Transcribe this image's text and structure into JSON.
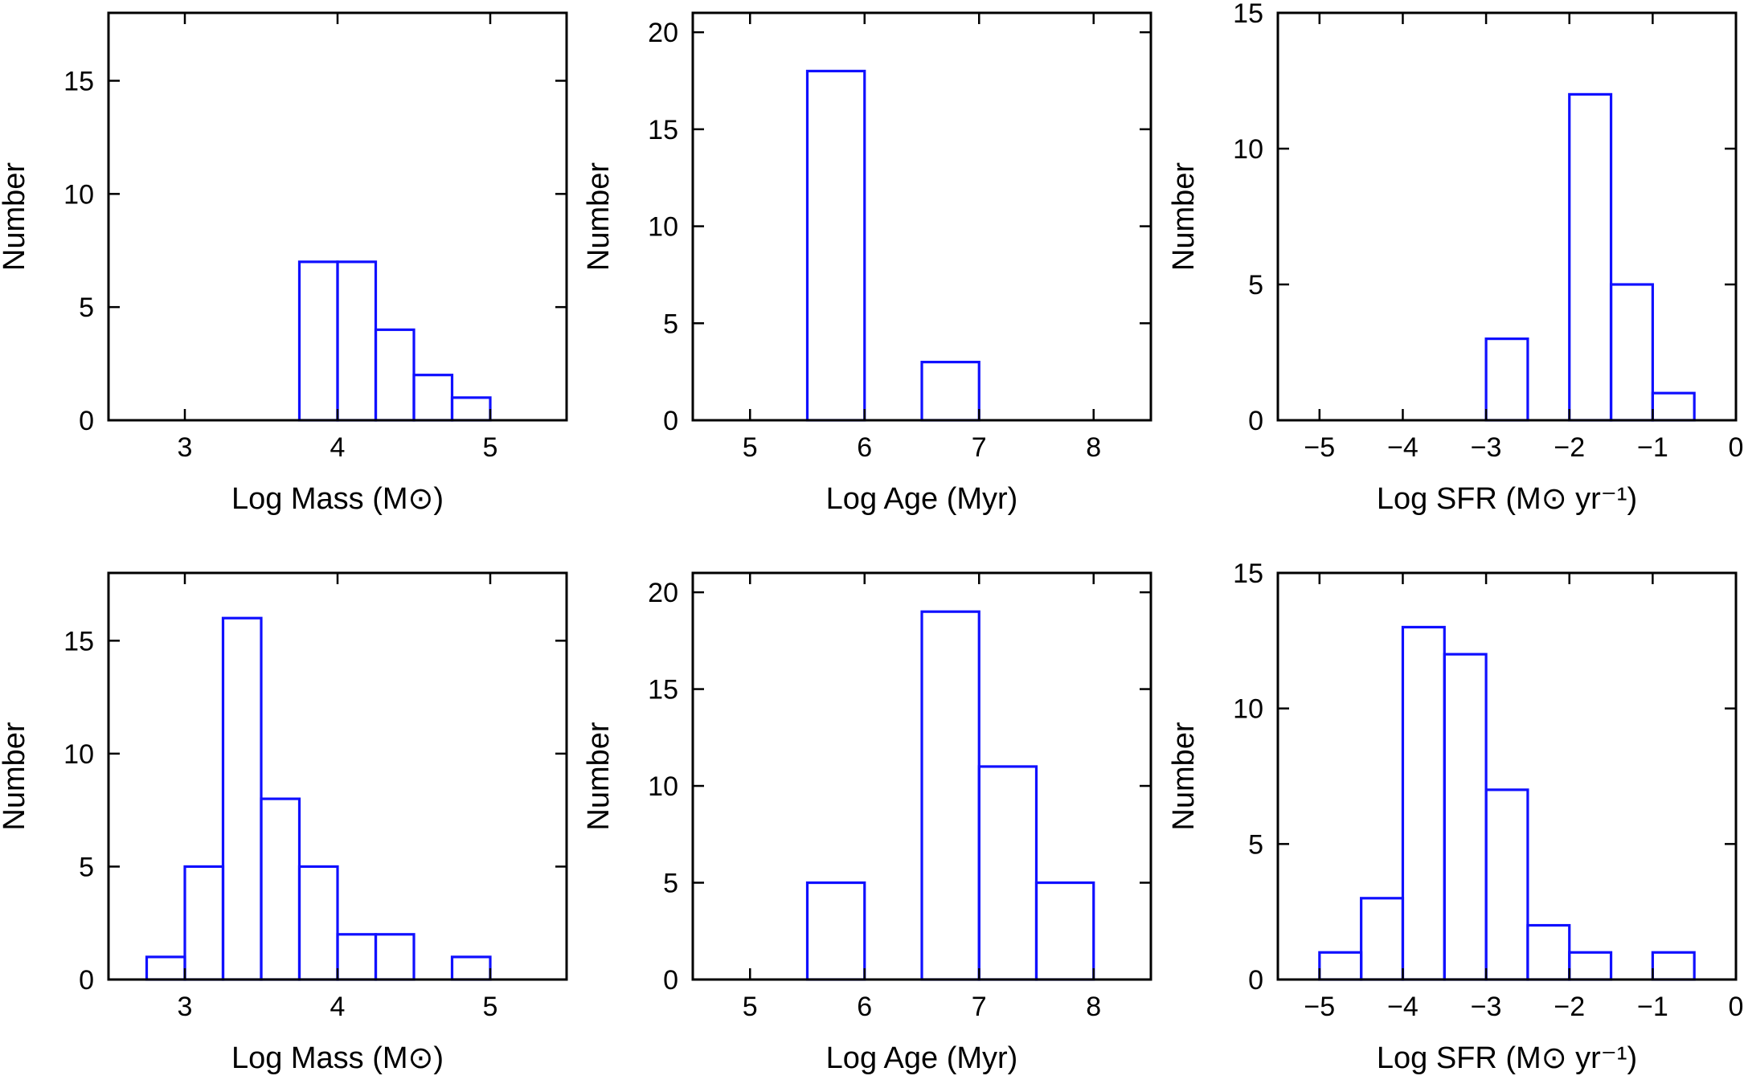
{
  "style": {
    "bar_color": "#1010ff",
    "axis_color": "#000000"
  },
  "chart_data": [
    {
      "type": "bar",
      "histogram": true,
      "panel": "top-left",
      "xlabel": "Log Mass (M⊙)",
      "ylabel": "Number",
      "xlim": [
        2.5,
        5.5
      ],
      "ylim": [
        0,
        18
      ],
      "xticks": [
        3,
        4,
        5
      ],
      "xtick_labels": [
        "3",
        "4",
        "5"
      ],
      "yticks": [
        0,
        5,
        10,
        15
      ],
      "ytick_labels": [
        "0",
        "5",
        "10",
        "15"
      ],
      "bin_width": 0.25,
      "bins": [
        [
          3.75,
          7
        ],
        [
          4.0,
          7
        ],
        [
          4.25,
          4
        ],
        [
          4.5,
          2
        ],
        [
          4.75,
          1
        ]
      ]
    },
    {
      "type": "bar",
      "histogram": true,
      "panel": "top-middle",
      "xlabel": "Log Age (Myr)",
      "ylabel": "Number",
      "xlim": [
        4.5,
        8.5
      ],
      "ylim": [
        0,
        21
      ],
      "xticks": [
        5,
        6,
        7,
        8
      ],
      "xtick_labels": [
        "5",
        "6",
        "7",
        "8"
      ],
      "yticks": [
        0,
        5,
        10,
        15,
        20
      ],
      "ytick_labels": [
        "0",
        "5",
        "10",
        "15",
        "20"
      ],
      "bin_width": 0.5,
      "bins": [
        [
          5.5,
          18
        ],
        [
          6.0,
          0
        ],
        [
          6.5,
          3
        ]
      ]
    },
    {
      "type": "bar",
      "histogram": true,
      "panel": "top-right",
      "xlabel": "Log SFR (M⊙ yr⁻¹)",
      "ylabel": "Number",
      "xlim": [
        -5.5,
        0
      ],
      "ylim": [
        0,
        15
      ],
      "xticks": [
        -5,
        -4,
        -3,
        -2,
        -1,
        0
      ],
      "xtick_labels": [
        "−5",
        "−4",
        "−3",
        "−2",
        "−1",
        "0"
      ],
      "yticks": [
        0,
        5,
        10,
        15
      ],
      "ytick_labels": [
        "0",
        "5",
        "10",
        "15"
      ],
      "bin_width": 0.5,
      "bins": [
        [
          -3.0,
          3
        ],
        [
          -2.5,
          0
        ],
        [
          -2.0,
          12
        ],
        [
          -1.5,
          5
        ],
        [
          -1.0,
          1
        ]
      ]
    },
    {
      "type": "bar",
      "histogram": true,
      "panel": "bottom-left",
      "xlabel": "Log Mass (M⊙)",
      "ylabel": "Number",
      "xlim": [
        2.5,
        5.5
      ],
      "ylim": [
        0,
        18
      ],
      "xticks": [
        3,
        4,
        5
      ],
      "xtick_labels": [
        "3",
        "4",
        "5"
      ],
      "yticks": [
        0,
        5,
        10,
        15
      ],
      "ytick_labels": [
        "0",
        "5",
        "10",
        "15"
      ],
      "bin_width": 0.25,
      "bins": [
        [
          2.75,
          1
        ],
        [
          3.0,
          5
        ],
        [
          3.25,
          16
        ],
        [
          3.5,
          8
        ],
        [
          3.75,
          5
        ],
        [
          4.0,
          2
        ],
        [
          4.25,
          2
        ],
        [
          4.5,
          0
        ],
        [
          4.75,
          1
        ]
      ]
    },
    {
      "type": "bar",
      "histogram": true,
      "panel": "bottom-middle",
      "xlabel": "Log Age (Myr)",
      "ylabel": "Number",
      "xlim": [
        4.5,
        8.5
      ],
      "ylim": [
        0,
        21
      ],
      "xticks": [
        5,
        6,
        7,
        8
      ],
      "xtick_labels": [
        "5",
        "6",
        "7",
        "8"
      ],
      "yticks": [
        0,
        5,
        10,
        15,
        20
      ],
      "ytick_labels": [
        "0",
        "5",
        "10",
        "15",
        "20"
      ],
      "bin_width": 0.5,
      "bins": [
        [
          5.5,
          5
        ],
        [
          6.0,
          0
        ],
        [
          6.5,
          19
        ],
        [
          7.0,
          11
        ],
        [
          7.5,
          5
        ]
      ]
    },
    {
      "type": "bar",
      "histogram": true,
      "panel": "bottom-right",
      "xlabel": "Log SFR (M⊙ yr⁻¹)",
      "ylabel": "Number",
      "xlim": [
        -5.5,
        0
      ],
      "ylim": [
        0,
        15
      ],
      "xticks": [
        -5,
        -4,
        -3,
        -2,
        -1,
        0
      ],
      "xtick_labels": [
        "−5",
        "−4",
        "−3",
        "−2",
        "−1",
        "0"
      ],
      "yticks": [
        0,
        5,
        10,
        15
      ],
      "ytick_labels": [
        "0",
        "5",
        "10",
        "15"
      ],
      "bin_width": 0.5,
      "bins": [
        [
          -5.0,
          1
        ],
        [
          -4.5,
          3
        ],
        [
          -4.0,
          13
        ],
        [
          -3.5,
          12
        ],
        [
          -3.0,
          7
        ],
        [
          -2.5,
          2
        ],
        [
          -2.0,
          1
        ],
        [
          -1.5,
          0
        ],
        [
          -1.0,
          1
        ]
      ]
    }
  ]
}
